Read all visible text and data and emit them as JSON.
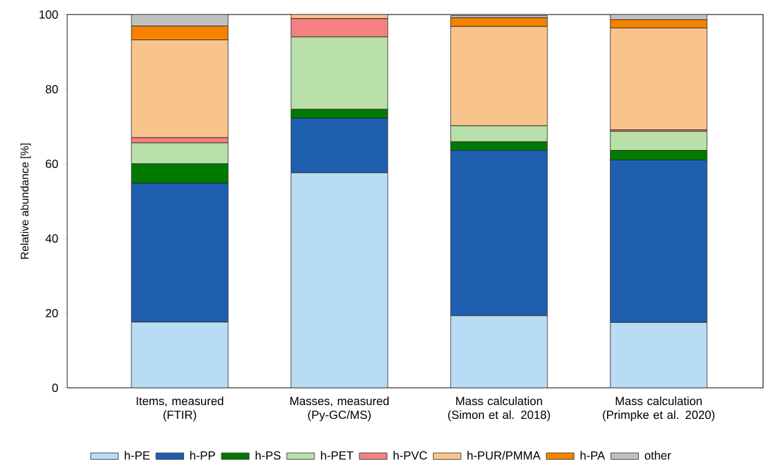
{
  "chart_data": {
    "type": "bar",
    "stacked": true,
    "ylabel": "Relative abundance [%]",
    "categories": [
      "Items, measured (FTIR)",
      "Masses, measured (Py-GC/MS)",
      "Mass calculation (Simon et al. 2018)",
      "Mass calculation (Primpke et al. 2020)"
    ],
    "series": [
      {
        "name": "h-PE",
        "color": "#b8dcf4",
        "values": [
          17.6,
          57.6,
          19.3,
          17.5
        ]
      },
      {
        "name": "h-PP",
        "color": "#1f5fb0",
        "values": [
          37.2,
          14.6,
          44.3,
          43.5
        ]
      },
      {
        "name": "h-PS",
        "color": "#007a00",
        "values": [
          5.2,
          2.4,
          2.3,
          2.6
        ]
      },
      {
        "name": "h-PET",
        "color": "#b8e0a8",
        "values": [
          5.6,
          19.4,
          4.3,
          5.1
        ]
      },
      {
        "name": "h-PVC",
        "color": "#f58080",
        "values": [
          1.4,
          4.9,
          null,
          0.4
        ]
      },
      {
        "name": "h-PUR/PMMA",
        "color": "#f8c48c",
        "values": [
          26.2,
          1.1,
          26.6,
          27.3
        ]
      },
      {
        "name": "h-PA",
        "color": "#f58200",
        "values": [
          3.7,
          0,
          2.3,
          2.2
        ]
      },
      {
        "name": "other",
        "color": "#c0c0c0",
        "values": [
          3.1,
          0,
          0.6,
          1.4
        ]
      }
    ],
    "ylim": [
      0,
      100
    ],
    "yticks": [
      0,
      20,
      40,
      60,
      80,
      100
    ],
    "grid": false,
    "legend": "bottom"
  }
}
